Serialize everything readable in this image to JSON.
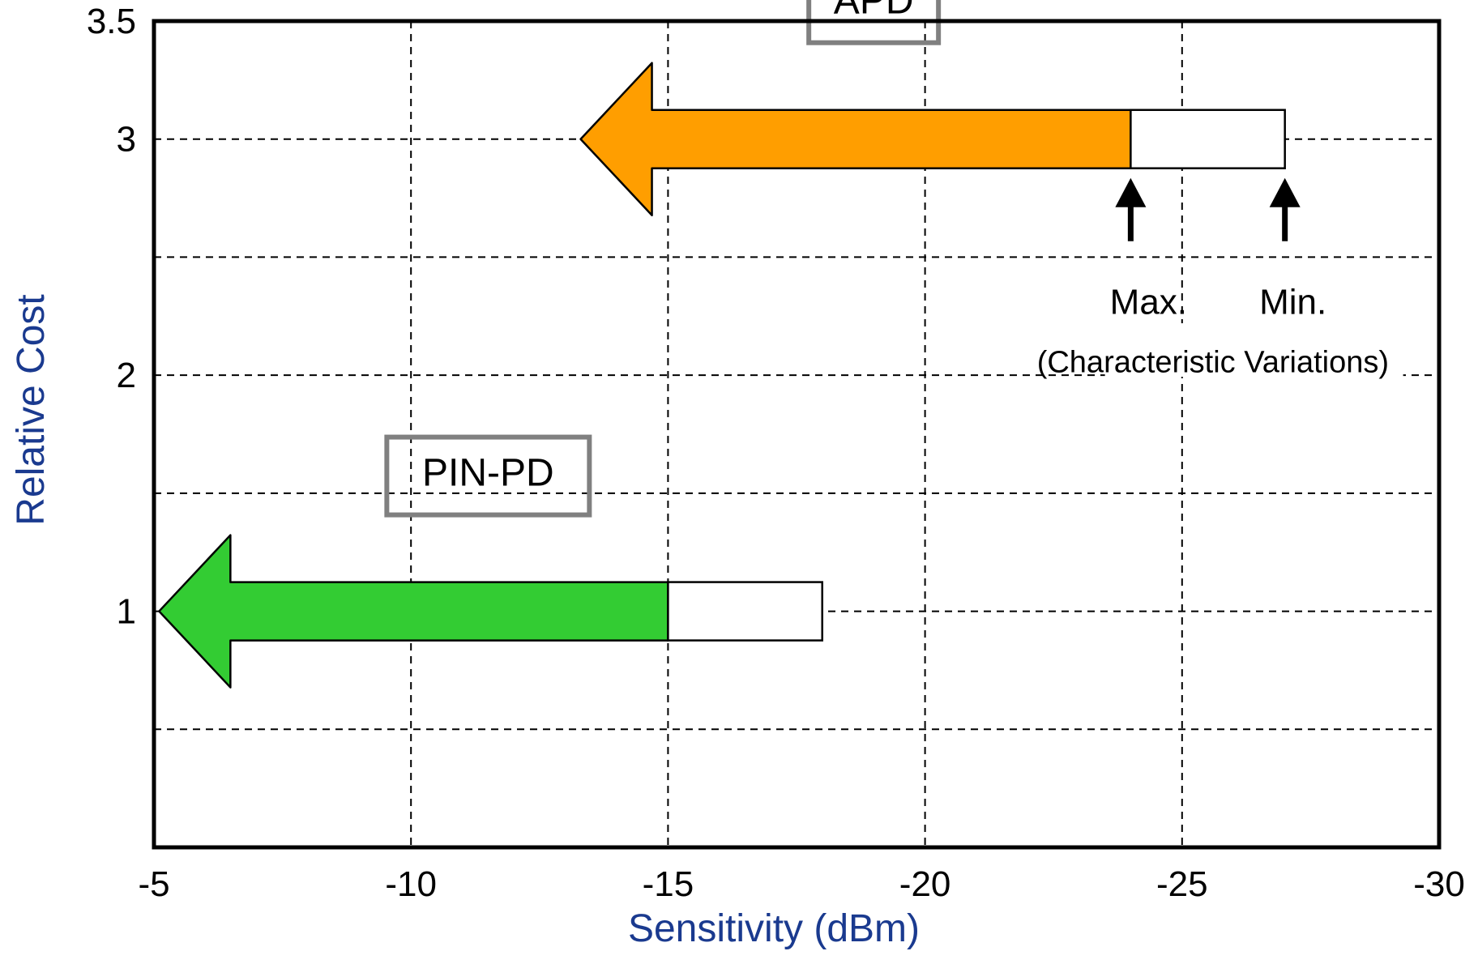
{
  "chart_data": {
    "type": "bar",
    "xlabel": "Sensitivity (dBm)",
    "ylabel": "Relative Cost",
    "xlim": [
      -5,
      -30
    ],
    "ylim": [
      0,
      3.5
    ],
    "x_ticks": [
      "-5",
      "-10",
      "-15",
      "-20",
      "-25",
      "-30"
    ],
    "x_tick_values": [
      -5,
      -10,
      -15,
      -20,
      -25,
      -30
    ],
    "y_ticks": [
      "1",
      "2",
      "3",
      "3.5"
    ],
    "y_tick_values": [
      1,
      2,
      3,
      3.5
    ],
    "grid": true,
    "grid_x": [
      -10,
      -15,
      -20,
      -25
    ],
    "grid_y": [
      0.5,
      1,
      1.5,
      2,
      2.5,
      3
    ],
    "series": [
      {
        "name": "APD",
        "relative_cost": 3,
        "sensitivity_max": -24,
        "sensitivity_min": -27,
        "arrow_tip": -13.3,
        "color": "#ff9e00"
      },
      {
        "name": "PIN-PD",
        "relative_cost": 1,
        "sensitivity_max": -15,
        "sensitivity_min": -18,
        "arrow_tip": -5.1,
        "color": "#33cc33"
      }
    ],
    "annotations": {
      "max_label": "Max.",
      "min_label": "Min.",
      "variation_note": "(Characteristic Variations)"
    }
  }
}
